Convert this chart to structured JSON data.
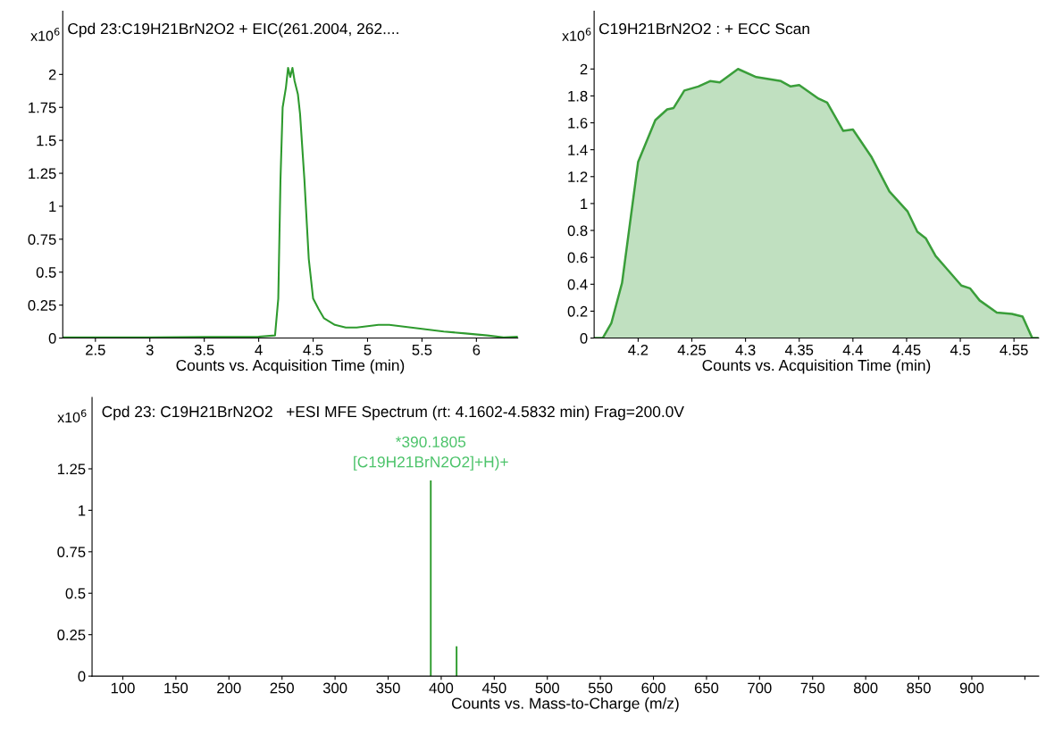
{
  "chart_data": [
    {
      "type": "line",
      "title": "Cpd 23:C19H21BrN2O2 + EIC(261.2004, 262....",
      "xlabel": "Counts vs. Acquisition Time (min)",
      "ylabel": "x10$^{6}$",
      "x": [
        2.2,
        3.0,
        3.5,
        4.0,
        4.15,
        4.18,
        4.2,
        4.22,
        4.25,
        4.27,
        4.29,
        4.31,
        4.33,
        4.36,
        4.38,
        4.42,
        4.46,
        4.5,
        4.55,
        4.6,
        4.7,
        4.8,
        4.9,
        5.0,
        5.1,
        5.2,
        5.3,
        5.5,
        5.7,
        5.9,
        6.1,
        6.25,
        6.38
      ],
      "series": [
        {
          "color": "#2e9a2e",
          "values": [
            0.005,
            0.005,
            0.008,
            0.01,
            0.02,
            0.3,
            1.2,
            1.75,
            1.9,
            2.05,
            1.98,
            2.05,
            1.95,
            1.85,
            1.7,
            1.2,
            0.6,
            0.3,
            0.22,
            0.15,
            0.1,
            0.08,
            0.08,
            0.09,
            0.1,
            0.1,
            0.09,
            0.07,
            0.05,
            0.035,
            0.02,
            0.005,
            0.01
          ]
        }
      ],
      "xlim": [
        2.2,
        6.38
      ],
      "xticks": [
        2.5,
        3,
        3.5,
        4,
        4.5,
        5,
        5.5,
        6
      ],
      "ylim": [
        0,
        2.48
      ],
      "yticks": [
        0,
        0.25,
        0.5,
        0.75,
        1,
        1.25,
        1.5,
        1.75,
        2
      ],
      "grid": false,
      "legend": false
    },
    {
      "type": "area",
      "title": "C19H21BrN2O2 : + ECC Scan",
      "xlabel": "Counts vs. Acquisition Time (min)",
      "ylabel": "x10$^{6}$",
      "x": [
        4.159,
        4.167,
        4.175,
        4.185,
        4.2,
        4.216,
        4.227,
        4.233,
        4.243,
        4.256,
        4.267,
        4.276,
        4.293,
        4.31,
        4.333,
        4.342,
        4.35,
        4.368,
        4.376,
        4.391,
        4.4,
        4.417,
        4.434,
        4.451,
        4.46,
        4.468,
        4.477,
        4.488,
        4.501,
        4.509,
        4.518,
        4.534,
        4.548,
        4.558,
        4.567,
        4.572
      ],
      "series": [
        {
          "color": "#3a9e3a",
          "values": [
            0,
            0,
            0.11,
            0.41,
            1.31,
            1.62,
            1.7,
            1.71,
            1.84,
            1.87,
            1.91,
            1.9,
            2.0,
            1.94,
            1.91,
            1.87,
            1.88,
            1.78,
            1.75,
            1.54,
            1.55,
            1.35,
            1.09,
            0.94,
            0.79,
            0.74,
            0.61,
            0.51,
            0.39,
            0.37,
            0.28,
            0.19,
            0.18,
            0.16,
            0,
            0
          ]
        }
      ],
      "xlim": [
        4.159,
        4.573
      ],
      "xticks": [
        4.2,
        4.25,
        4.3,
        4.35,
        4.4,
        4.45,
        4.5,
        4.55
      ],
      "ylim": [
        0,
        2.43
      ],
      "yticks": [
        0,
        0.2,
        0.4,
        0.6,
        0.8,
        1,
        1.2,
        1.4,
        1.6,
        1.8,
        2
      ],
      "grid": false,
      "legend": false
    },
    {
      "type": "bar",
      "title": "Cpd 23: C19H21BrN2O2   +ESI MFE Spectrum (rt: 4.1602-4.5832 min) Frag=200.0V",
      "xlabel": "Counts vs. Mass-to-Charge (m/z)",
      "ylabel": "x10$^{6}$",
      "x": [
        390.18,
        414.5
      ],
      "series": [
        {
          "color": "#2a9a2a",
          "values": [
            1.18,
            0.18
          ]
        }
      ],
      "annotations": [
        {
          "text": "*390.1805\n[C19H21BrN2O2]+H)+",
          "x": 390.18,
          "y": 1.18
        }
      ],
      "xlim": [
        71,
        963
      ],
      "xticks": [
        100,
        150,
        200,
        250,
        300,
        350,
        400,
        450,
        500,
        550,
        600,
        650,
        700,
        750,
        800,
        850,
        900,
        {
          "value": 950,
          "label": null
        }
      ],
      "ylim": [
        0,
        1.68
      ],
      "yticks": [
        0,
        0.25,
        0.5,
        0.75,
        1,
        1.25
      ],
      "grid": false,
      "legend": false
    }
  ]
}
